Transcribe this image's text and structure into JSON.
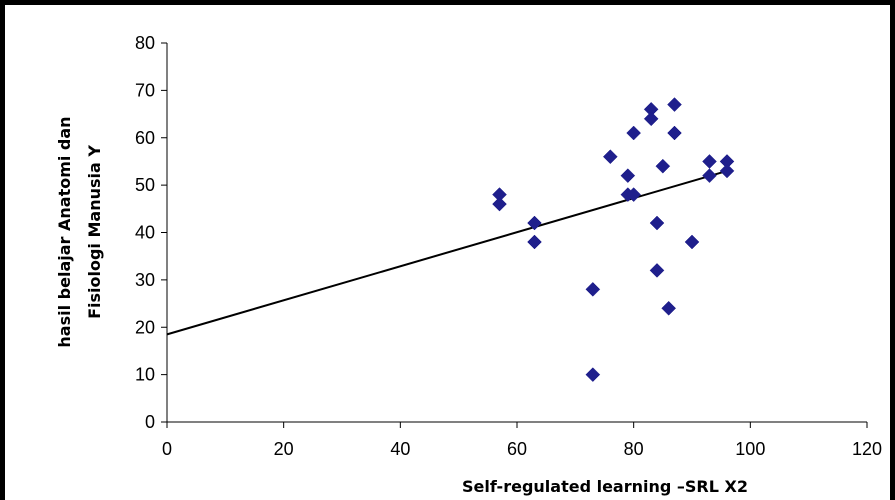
{
  "chart_data": {
    "type": "scatter",
    "title": "",
    "xlabel": "Self-regulated learning –SRL   X2",
    "ylabel_lines": [
      "hasil belajar Anatomi dan",
      "Fisiologi Manusia  Y"
    ],
    "xlim": [
      0,
      120
    ],
    "ylim": [
      0,
      80
    ],
    "x_ticks": [
      0,
      20,
      40,
      60,
      80,
      100,
      120
    ],
    "y_ticks": [
      0,
      10,
      20,
      30,
      40,
      50,
      60,
      70,
      80
    ],
    "grid": false,
    "legend": "none",
    "marker": "diamond",
    "marker_color": "#1F1F8C",
    "trendline_color": "#000000",
    "points": [
      {
        "x": 57,
        "y": 48
      },
      {
        "x": 57,
        "y": 46
      },
      {
        "x": 63,
        "y": 42
      },
      {
        "x": 63,
        "y": 38
      },
      {
        "x": 73,
        "y": 28
      },
      {
        "x": 73,
        "y": 10
      },
      {
        "x": 76,
        "y": 56
      },
      {
        "x": 79,
        "y": 52
      },
      {
        "x": 79,
        "y": 48
      },
      {
        "x": 80,
        "y": 48
      },
      {
        "x": 80,
        "y": 61
      },
      {
        "x": 83,
        "y": 66
      },
      {
        "x": 83,
        "y": 64
      },
      {
        "x": 84,
        "y": 42
      },
      {
        "x": 84,
        "y": 32
      },
      {
        "x": 85,
        "y": 54
      },
      {
        "x": 86,
        "y": 24
      },
      {
        "x": 87,
        "y": 67
      },
      {
        "x": 87,
        "y": 61
      },
      {
        "x": 90,
        "y": 38
      },
      {
        "x": 93,
        "y": 55
      },
      {
        "x": 93,
        "y": 52
      },
      {
        "x": 96,
        "y": 55
      },
      {
        "x": 96,
        "y": 53
      }
    ],
    "trendline": {
      "x": [
        0,
        96
      ],
      "y": [
        18.5,
        53
      ]
    }
  }
}
